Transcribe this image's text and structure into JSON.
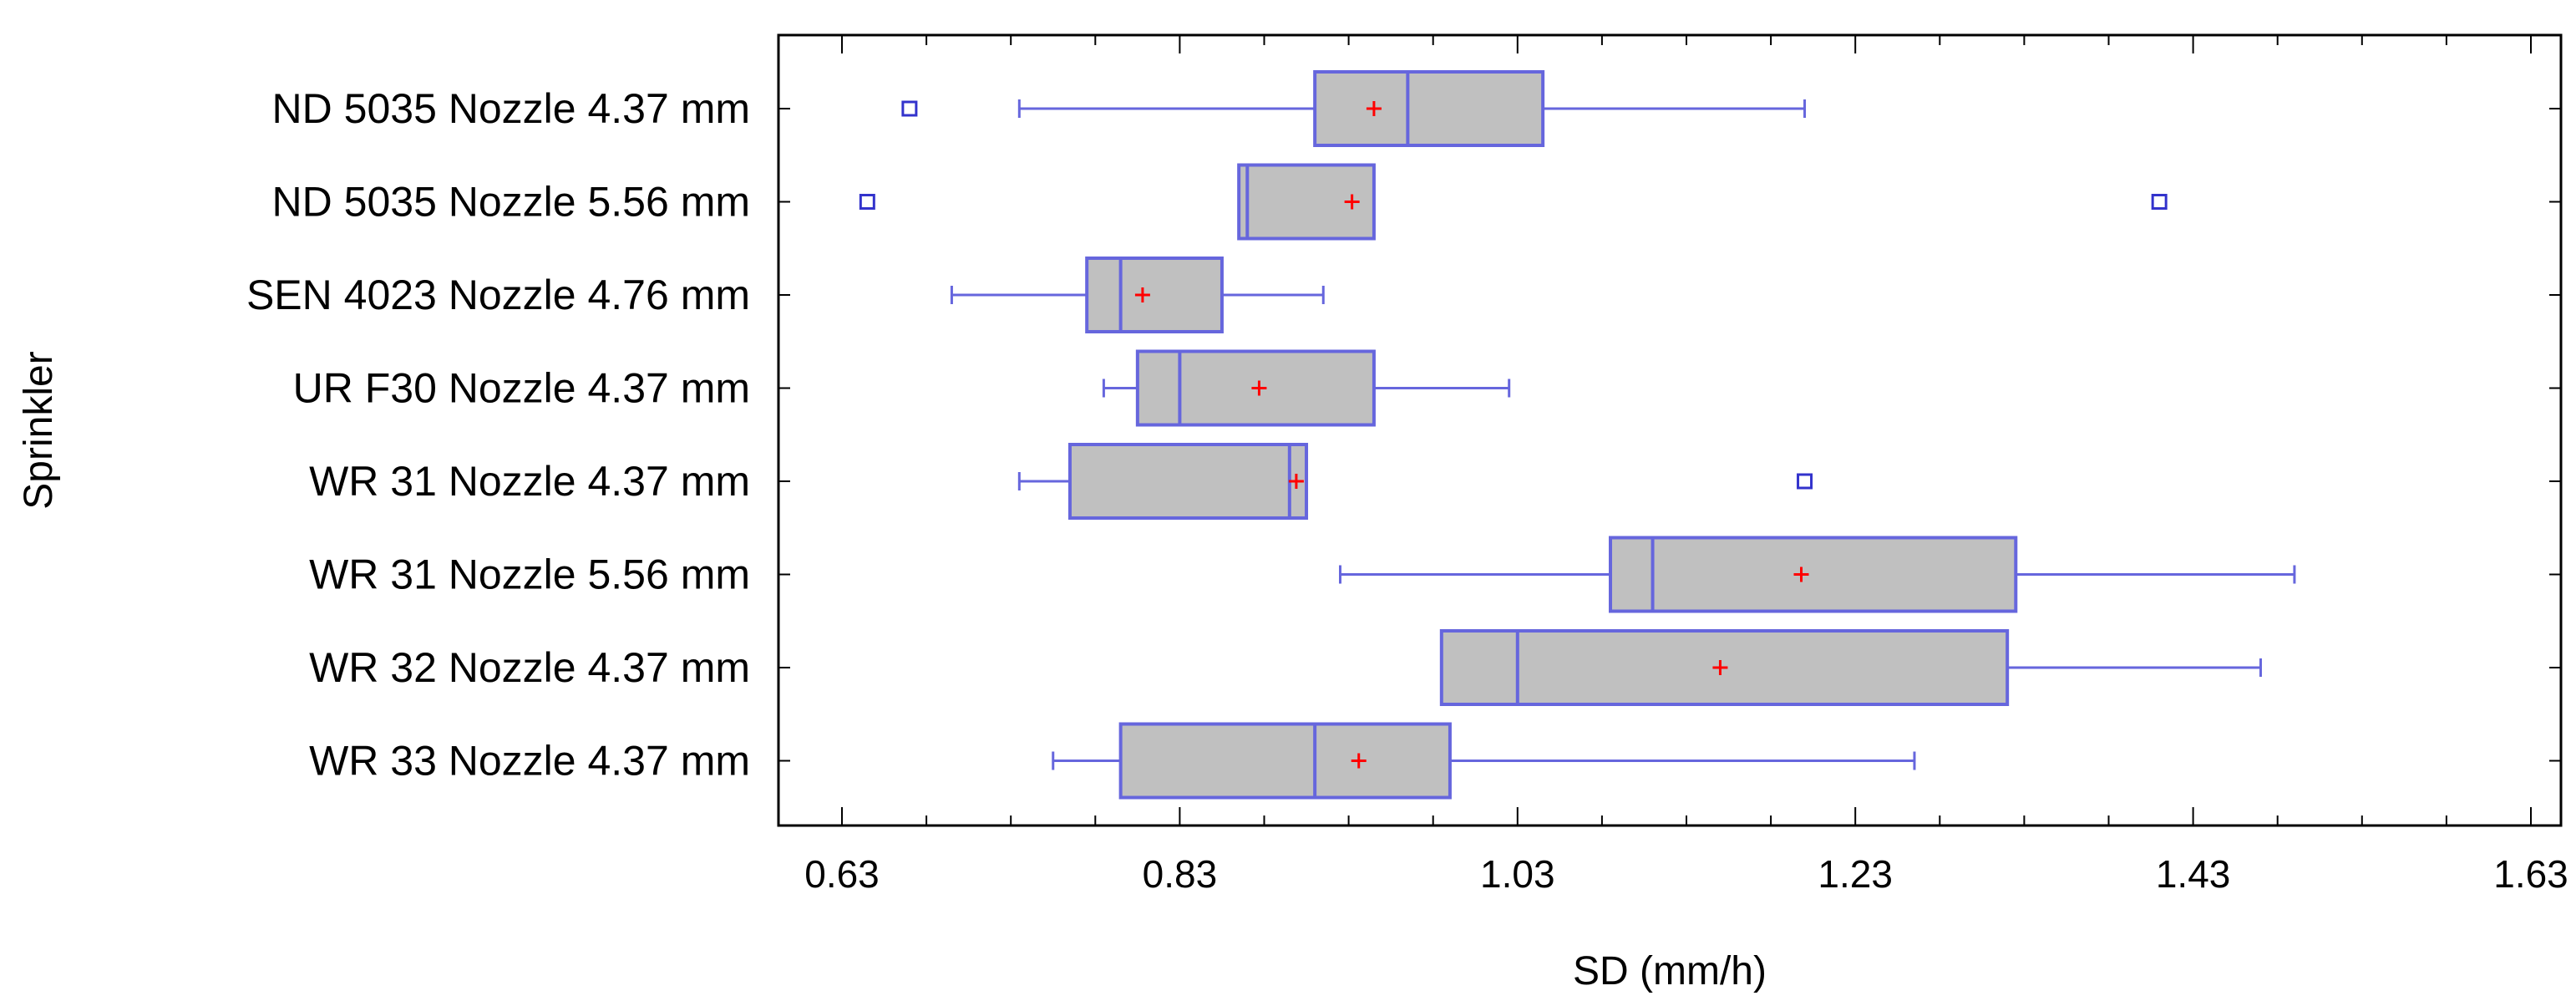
{
  "chart_data": {
    "type": "boxplot",
    "orientation": "horizontal",
    "xlabel": "SD (mm/h)",
    "ylabel": "Sprinkler",
    "xlim": [
      0.6,
      1.65
    ],
    "xticks": [
      0.63,
      0.83,
      1.03,
      1.23,
      1.43,
      1.63
    ],
    "xtick_labels": [
      "0.63",
      "0.83",
      "1.03",
      "1.23",
      "1.43",
      "1.63"
    ],
    "colors": {
      "box_fill": "#c0c0c0",
      "box_edge": "#6666dd",
      "whisker": "#6666dd",
      "mean_marker": "#ff0000",
      "outlier": "#3333cc"
    },
    "categories": [
      "ND 5035 Nozzle 4.37 mm",
      "ND 5035 Nozzle 5.56 mm",
      "SEN 4023 Nozzle 4.76 mm",
      "UR F30 Nozzle 4.37 mm",
      "WR 31 Nozzle 4.37 mm",
      "WR 31 Nozzle 5.56 mm",
      "WR 32 Nozzle 4.37 mm",
      "WR 33 Nozzle 4.37 mm"
    ],
    "boxes": [
      {
        "whisker_low": 0.735,
        "q1": 0.91,
        "median": 0.965,
        "q3": 1.045,
        "whisker_high": 1.2,
        "mean": 0.945,
        "outliers": [
          0.67
        ]
      },
      {
        "whisker_low": 0.865,
        "q1": 0.865,
        "median": 0.87,
        "q3": 0.945,
        "whisker_high": 0.945,
        "mean": 0.932,
        "outliers": [
          0.645,
          1.41
        ]
      },
      {
        "whisker_low": 0.695,
        "q1": 0.775,
        "median": 0.795,
        "q3": 0.855,
        "whisker_high": 0.915,
        "mean": 0.808,
        "outliers": []
      },
      {
        "whisker_low": 0.785,
        "q1": 0.805,
        "median": 0.83,
        "q3": 0.945,
        "whisker_high": 1.025,
        "mean": 0.877,
        "outliers": []
      },
      {
        "whisker_low": 0.735,
        "q1": 0.765,
        "median": 0.895,
        "q3": 0.905,
        "whisker_high": 0.905,
        "mean": 0.899,
        "outliers": [
          1.2
        ]
      },
      {
        "whisker_low": 0.925,
        "q1": 1.085,
        "median": 1.11,
        "q3": 1.325,
        "whisker_high": 1.49,
        "mean": 1.198,
        "outliers": []
      },
      {
        "whisker_low": 0.985,
        "q1": 0.985,
        "median": 1.03,
        "q3": 1.32,
        "whisker_high": 1.47,
        "mean": 1.15,
        "outliers": []
      },
      {
        "whisker_low": 0.755,
        "q1": 0.795,
        "median": 0.91,
        "q3": 0.99,
        "whisker_high": 1.265,
        "mean": 0.936,
        "outliers": []
      }
    ]
  }
}
